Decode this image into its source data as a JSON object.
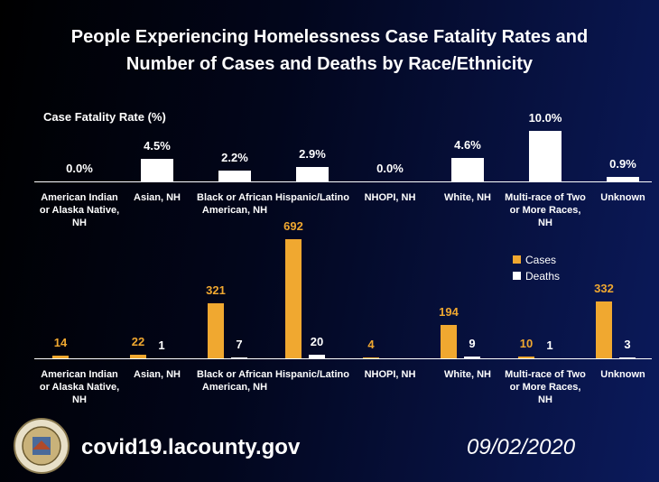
{
  "header": {
    "title_lines": [
      "People Experiencing Homelessness Case Fatality Rates and",
      "Number of Cases and Deaths by Race/Ethnicity"
    ]
  },
  "chart_data": [
    {
      "type": "bar",
      "title": "Case Fatality Rate (%)",
      "categories": [
        "American Indian or Alaska Native, NH",
        "Asian, NH",
        "Black or African American, NH",
        "Hispanic/Latino",
        "NHOPI, NH",
        "White, NH",
        "Multi-race of Two or More Races, NH",
        "Unknown"
      ],
      "values": [
        0.0,
        4.5,
        2.2,
        2.9,
        0.0,
        4.6,
        10.0,
        0.9
      ],
      "value_labels": [
        "0.0%",
        "4.5%",
        "2.2%",
        "2.9%",
        "0.0%",
        "4.6%",
        "10.0%",
        "0.9%"
      ],
      "color": "#ffffff"
    },
    {
      "type": "grouped-bar",
      "categories": [
        "American Indian or Alaska Native, NH",
        "Asian, NH",
        "Black or African American, NH",
        "Hispanic/Latino",
        "NHOPI, NH",
        "White, NH",
        "Multi-race of Two or More Races, NH",
        "Unknown"
      ],
      "series": [
        {
          "name": "Cases",
          "color": "#f0a830",
          "values": [
            14,
            22,
            321,
            692,
            4,
            194,
            10,
            332
          ]
        },
        {
          "name": "Deaths",
          "color": "#ffffff",
          "values": [
            null,
            1,
            7,
            20,
            null,
            9,
            1,
            3
          ]
        }
      ]
    }
  ],
  "footer": {
    "url": "covid19.lacounty.gov",
    "date": "09/02/2020"
  }
}
